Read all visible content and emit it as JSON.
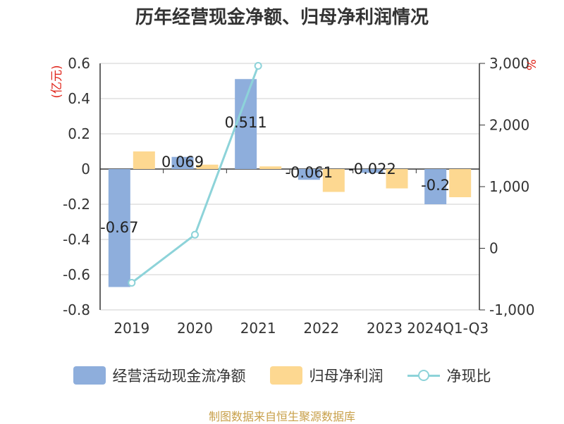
{
  "title": "历年经营现金净额、归母净利润情况",
  "source": "制图数据来自恒生聚源数据库",
  "chart_data": {
    "type": "bar",
    "categories": [
      "2019",
      "2020",
      "2021",
      "2022",
      "2023",
      "2024Q1-Q3"
    ],
    "left_axis": {
      "unit": "(亿元)",
      "min": -0.8,
      "max": 0.6,
      "ticks": [
        "0.6",
        "0.4",
        "0.2",
        "0",
        "-0.2",
        "-0.4",
        "-0.6",
        "-0.8"
      ]
    },
    "right_axis": {
      "unit": "%",
      "min": -1000,
      "max": 3000,
      "ticks": [
        "3,000",
        "2,000",
        "1,000",
        "0",
        "-1,000"
      ]
    },
    "series": [
      {
        "name": "经营活动现金流净额",
        "type": "bar",
        "axis": "left",
        "color": "#8eaedc",
        "values": [
          -0.67,
          0.069,
          0.511,
          -0.061,
          -0.022,
          -0.2
        ],
        "labels": [
          "-0.67",
          "0.069",
          "0.511",
          "-0.061",
          "-0.022",
          "-0.2"
        ]
      },
      {
        "name": "归母净利润",
        "type": "bar",
        "axis": "left",
        "color": "#fdd891",
        "values": [
          0.1,
          0.025,
          0.015,
          -0.13,
          -0.11,
          -0.16
        ]
      },
      {
        "name": "净现比",
        "type": "line",
        "axis": "right",
        "color": "#8dd3d9",
        "values": [
          -560,
          220,
          2960,
          null,
          null,
          null
        ]
      }
    ],
    "legend_position": "bottom",
    "grid": true
  }
}
